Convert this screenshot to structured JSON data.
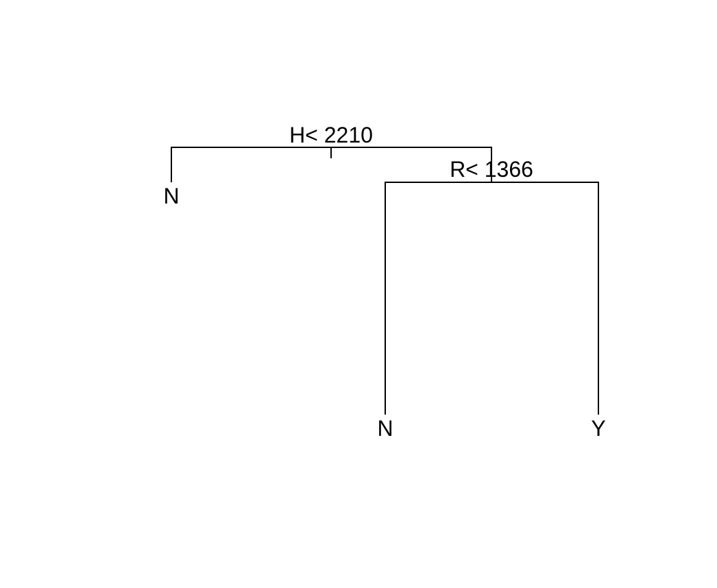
{
  "tree": {
    "root": {
      "split": "H< 2210",
      "left": {
        "leaf": "N"
      },
      "right": {
        "split": "R< 1366",
        "left": {
          "leaf": "N"
        },
        "right": {
          "leaf": "Y"
        }
      }
    }
  }
}
